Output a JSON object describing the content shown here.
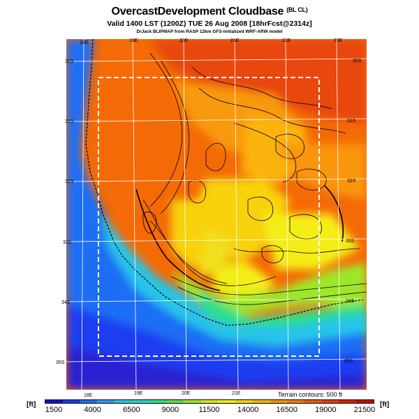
{
  "title": "OvercastDevelopment Cloudbase",
  "title_qualifier": "(BL CL)",
  "subtitle": "Valid 1400 LST (1200Z) TUE 26 Aug 2008 [18hrFcst@2314z]",
  "credit": "DrJack BLIPMAP from RASP 12km GFS-initialized WRF-ARW model",
  "map": {
    "lon_labels_top": [
      "18E",
      "19E",
      "20E",
      "21E",
      "22E",
      "23E"
    ],
    "lon_labels_bottom": [
      "18E",
      "19E",
      "20E",
      "21E"
    ],
    "lat_labels_left": [
      "30S",
      "31S",
      "32S",
      "33S",
      "34S",
      "35S"
    ],
    "lat_labels_right": [
      "30S",
      "31S",
      "32S",
      "33S",
      "34S",
      "35S"
    ],
    "terrain_note": "Terrain contours: 500 ft"
  },
  "colorbar": {
    "unit_label": "[ft]",
    "tick_labels": [
      "1500",
      "4000",
      "6500",
      "9000",
      "11500",
      "14000",
      "16500",
      "19000",
      "21500"
    ],
    "colors": [
      "#1a10c8",
      "#1a3cf0",
      "#1e6ef5",
      "#2e9cf0",
      "#28c4e8",
      "#22d8c4",
      "#2ee08a",
      "#5ee04a",
      "#9ee62a",
      "#d2ec1e",
      "#f4ee12",
      "#f8d20c",
      "#fab40a",
      "#fa9608",
      "#f67806",
      "#f05a06",
      "#e83c06",
      "#dc1e06",
      "#c80c08"
    ]
  }
}
